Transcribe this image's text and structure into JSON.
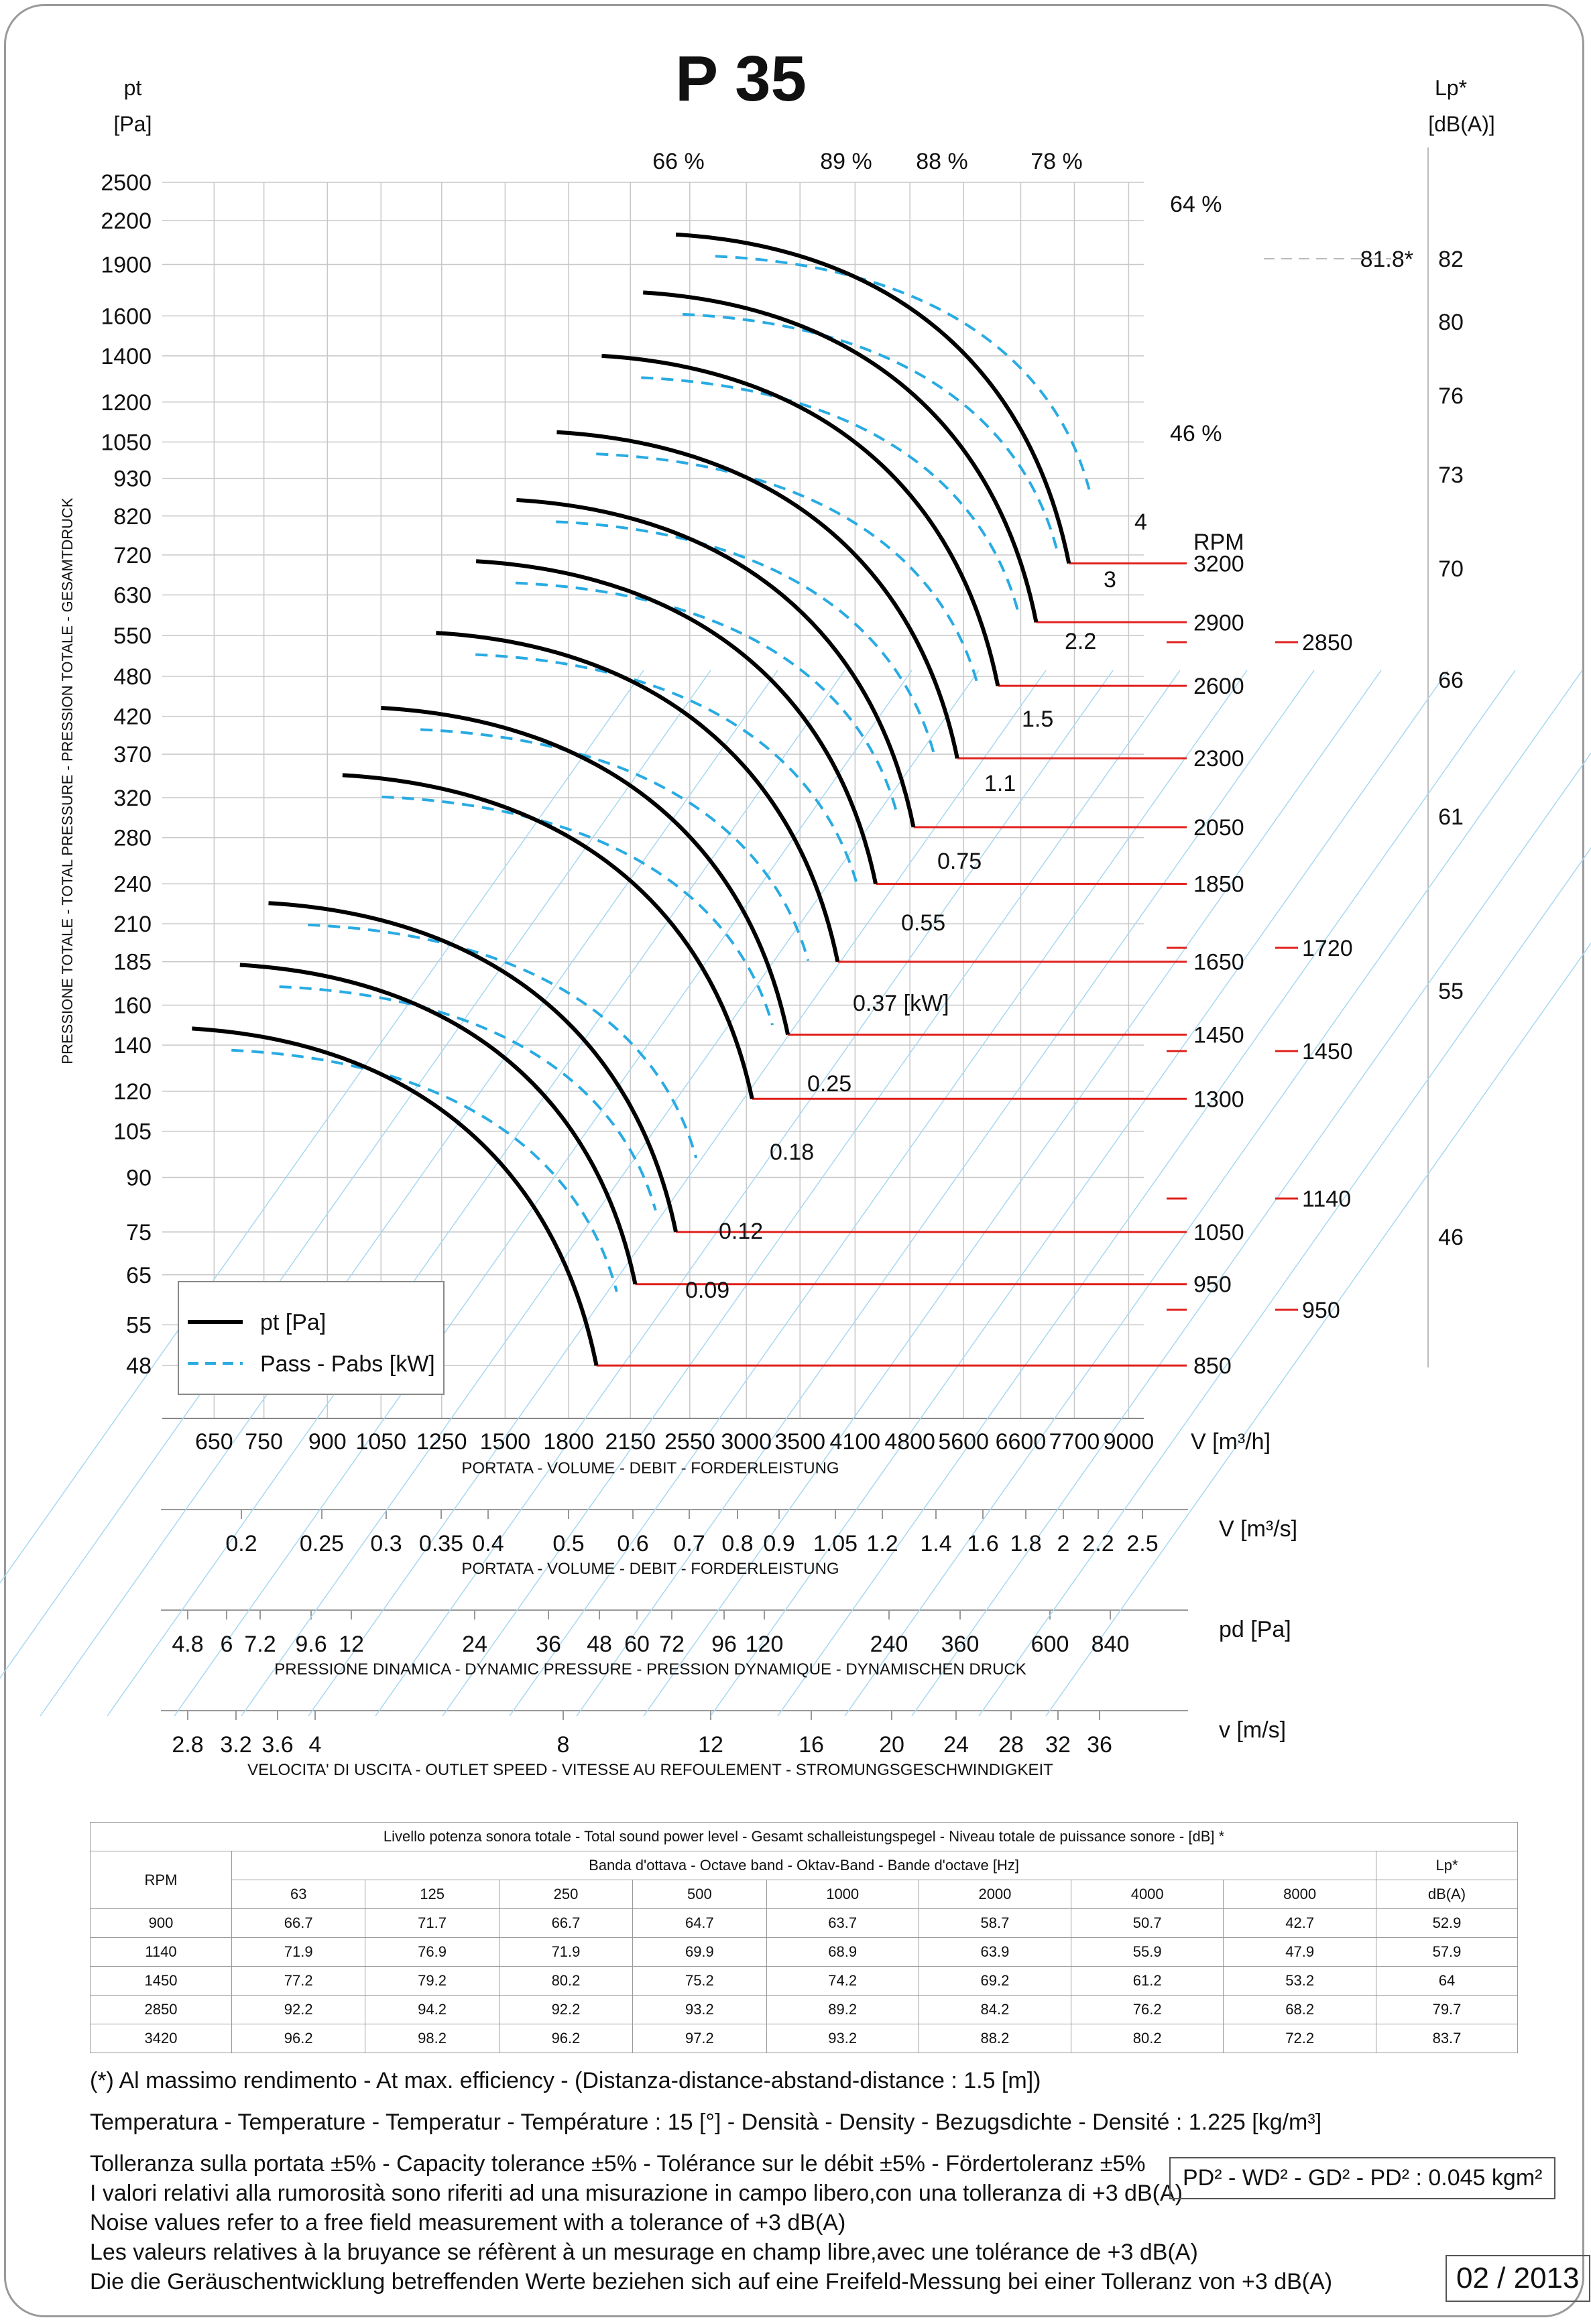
{
  "title": "P 35",
  "chart_data": {
    "type": "line",
    "title": "P 35",
    "y_left": {
      "label": [
        "pt",
        "[Pa]"
      ],
      "ticks": [
        48,
        55,
        65,
        75,
        90,
        105,
        120,
        140,
        160,
        185,
        210,
        240,
        280,
        320,
        370,
        420,
        480,
        550,
        630,
        720,
        820,
        930,
        1050,
        1200,
        1400,
        1600,
        1900,
        2200,
        2500
      ],
      "side_label": "PRESSIONE TOTALE - TOTAL PRESSURE - PRESSION TOTALE - GESAMTDRUCK"
    },
    "y_right": {
      "label": [
        "Lp*",
        "[dB(A)]"
      ],
      "ticks": [
        "46",
        "55",
        "61",
        "66",
        "70",
        "73",
        "76",
        "80",
        "82"
      ]
    },
    "x_axis": {
      "unit": "V [m³/h]",
      "label": "PORTATA - VOLUME - DEBIT - FORDERLEISTUNG",
      "ticks": [
        "650",
        "750",
        "900",
        "1050",
        "1250",
        "1500",
        "1800",
        "2150",
        "2550",
        "3000",
        "3500",
        "4100",
        "4800",
        "5600",
        "6600",
        "7700",
        "9000"
      ]
    },
    "scale_ms": {
      "unit": "V  [m³/s]",
      "label": "PORTATA - VOLUME - DEBIT - FORDERLEISTUNG",
      "ticks": [
        "0.2",
        "0.25",
        "0.3",
        "0.35",
        "0.4",
        "0.5",
        "0.6",
        "0.7",
        "0.8",
        "0.9",
        "1.05",
        "1.2",
        "1.4",
        "1.6",
        "1.8",
        "2",
        "2.2",
        "2.5"
      ]
    },
    "scale_pd": {
      "unit": "pd  [Pa]",
      "label": "PRESSIONE DINAMICA - DYNAMIC PRESSURE - PRESSION DYNAMIQUE - DYNAMISCHEN DRUCK",
      "ticks": [
        "4.8",
        "6",
        "7.2",
        "9.6",
        "12",
        "24",
        "36",
        "48",
        "60",
        "72",
        "96",
        "120",
        "240",
        "360",
        "600",
        "840"
      ]
    },
    "scale_v": {
      "unit": "v  [m/s]",
      "label": "VELOCITA' DI USCITA - OUTLET SPEED - VITESSE AU REFOULEMENT - STROMUNGSGESCHWINDIGKEIT",
      "ticks": [
        "2.8",
        "3.2",
        "3.6",
        "4",
        "8",
        "12",
        "16",
        "20",
        "24",
        "28",
        "32",
        "36"
      ]
    },
    "rpm_title": "RPM",
    "rpm_curves": [
      "850",
      "950",
      "1050",
      "1300",
      "1450",
      "1650",
      "1850",
      "2050",
      "2300",
      "2600",
      "2900",
      "3200"
    ],
    "rpm_extra": [
      "950",
      "1140",
      "1450",
      "1720",
      "2850"
    ],
    "power_labels": [
      "0.09",
      "0.12",
      "0.18",
      "0.25",
      "0.37  [kW]",
      "0.55",
      "0.75",
      "1.1",
      "1.5",
      "2.2",
      "3",
      "4"
    ],
    "efficiency_labels": [
      "66 %",
      "89 %",
      "88 %",
      "78 %",
      "64 %",
      "46 %"
    ],
    "max_noise_label": "81.8*",
    "legend": [
      {
        "name": "pt [Pa]",
        "style": "solid",
        "color": "#000000"
      },
      {
        "name": "Pass - Pabs [kW]",
        "style": "dashed",
        "color": "#29abe2"
      }
    ],
    "colors": {
      "pressure": "#000000",
      "power": "#29abe2",
      "rpm": "#e0201b",
      "efficiency": "#a8d8f0",
      "grid": "#c8c8c8"
    }
  },
  "sound_table": {
    "header_main": "Livello potenza sonora totale - Total sound power level - Gesamt schalleistungspegel - Niveau totale de puissance sonore - [dB]   *",
    "header_band": "Banda d'ottava - Octave band - Oktav-Band - Bande d'octave [Hz]",
    "rpm_label": "RPM",
    "lp_label": [
      "Lp*",
      "dB(A)"
    ],
    "bands": [
      "63",
      "125",
      "250",
      "500",
      "1000",
      "2000",
      "4000",
      "8000"
    ],
    "rows": [
      {
        "rpm": "900",
        "values": [
          "66.7",
          "71.7",
          "66.7",
          "64.7",
          "63.7",
          "58.7",
          "50.7",
          "42.7"
        ],
        "lp": "52.9"
      },
      {
        "rpm": "1140",
        "values": [
          "71.9",
          "76.9",
          "71.9",
          "69.9",
          "68.9",
          "63.9",
          "55.9",
          "47.9"
        ],
        "lp": "57.9"
      },
      {
        "rpm": "1450",
        "values": [
          "77.2",
          "79.2",
          "80.2",
          "75.2",
          "74.2",
          "69.2",
          "61.2",
          "53.2"
        ],
        "lp": "64"
      },
      {
        "rpm": "2850",
        "values": [
          "92.2",
          "94.2",
          "92.2",
          "93.2",
          "89.2",
          "84.2",
          "76.2",
          "68.2"
        ],
        "lp": "79.7"
      },
      {
        "rpm": "3420",
        "values": [
          "96.2",
          "98.2",
          "96.2",
          "97.2",
          "93.2",
          "88.2",
          "80.2",
          "72.2"
        ],
        "lp": "83.7"
      }
    ]
  },
  "notes": {
    "efficiency": "(*) Al massimo rendimento - At max. efficiency - (Distanza-distance-abstand-distance : 1.5 [m])",
    "temperature": "Temperatura - Temperature - Temperatur - Température : 15 [°]  -  Densità - Density - Bezugsdichte - Densité : 1.225 [kg/m³]",
    "tol1": "Tolleranza sulla portata  ±5% - Capacity tolerance ±5% - Tolérance sur le débit ±5% - Fördertoleranz ±5%",
    "tol2": "I valori relativi alla rumorosità sono riferiti ad una misurazione in campo libero,con una tolleranza di +3 dB(A)",
    "tol3": "Noise values refer to a free field measurement with a tolerance of +3 dB(A)",
    "tol4": "Les valeurs relatives à la bruyance se réfèrent à un mesurage en champ libre,avec une tolérance de +3 dB(A)",
    "tol5": "Die die Geräuschentwicklung betreffenden Werte beziehen sich auf eine Freifeld-Messung bei einer Tolleranz von +3 dB(A)"
  },
  "inertia": "PD² -  WD² - GD² -  PD²  :  0.045 kgm²",
  "date": "02 / 2013"
}
